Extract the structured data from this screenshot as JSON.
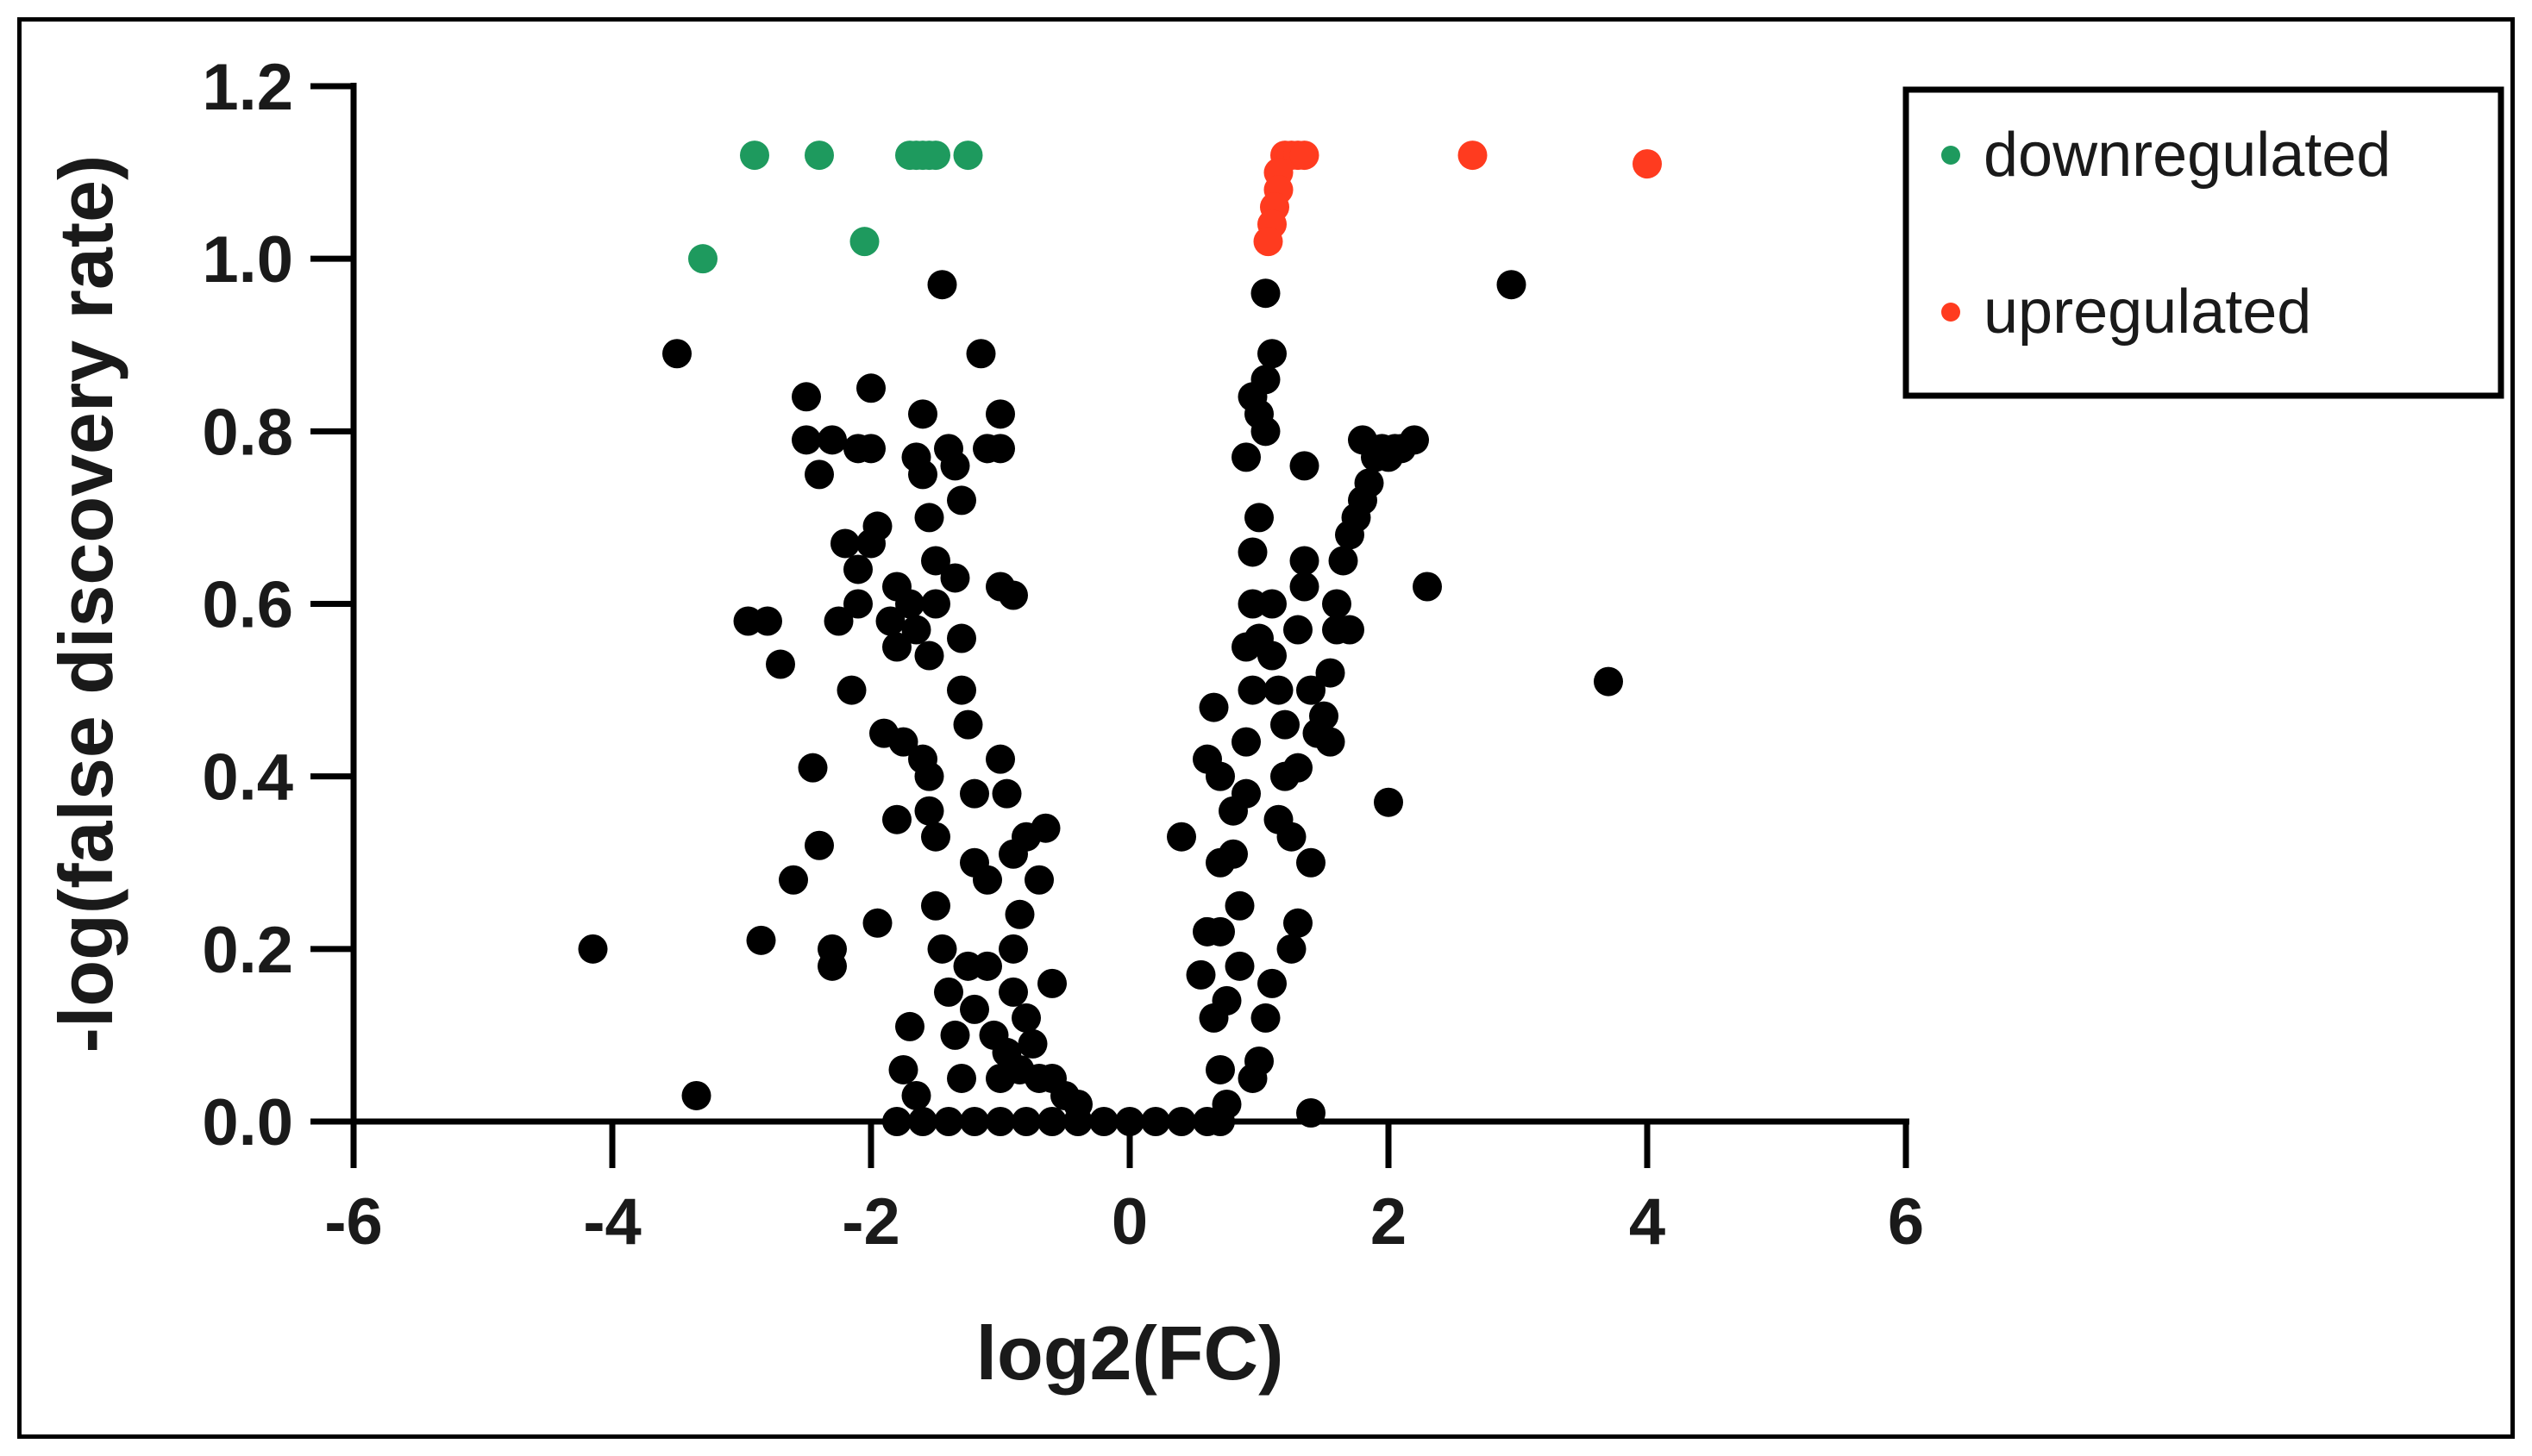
{
  "chart_data": {
    "type": "scatter",
    "title": "",
    "xlabel": "log2(FC)",
    "ylabel": "-log(false discovery rate)",
    "xlim": [
      -6,
      6
    ],
    "ylim": [
      0,
      1.2
    ],
    "xticks": [
      -6,
      -4,
      -2,
      0,
      2,
      4,
      6
    ],
    "xtick_labels": [
      "-6",
      "-4",
      "-2",
      "0",
      "2",
      "4",
      "6"
    ],
    "yticks": [
      0.0,
      0.2,
      0.4,
      0.6,
      0.8,
      1.0,
      1.2
    ],
    "ytick_labels": [
      "0.0",
      "0.2",
      "0.4",
      "0.6",
      "0.8",
      "1.0",
      "1.2"
    ],
    "grid": false,
    "legend": {
      "placement": "top-right",
      "entries": [
        "downregulated",
        "upregulated"
      ]
    },
    "colors": {
      "downregulated": "#1e9a5e",
      "upregulated": "#ff3b1f",
      "other": "#000000"
    },
    "series": [
      {
        "name": "downregulated",
        "points": [
          [
            -2.9,
            1.12
          ],
          [
            -2.4,
            1.12
          ],
          [
            -1.7,
            1.12
          ],
          [
            -1.65,
            1.12
          ],
          [
            -1.6,
            1.12
          ],
          [
            -1.55,
            1.12
          ],
          [
            -1.5,
            1.12
          ],
          [
            -1.25,
            1.12
          ],
          [
            -3.3,
            1.0
          ],
          [
            -2.05,
            1.02
          ]
        ]
      },
      {
        "name": "upregulated",
        "points": [
          [
            1.2,
            1.12
          ],
          [
            1.25,
            1.12
          ],
          [
            1.3,
            1.12
          ],
          [
            1.35,
            1.12
          ],
          [
            2.65,
            1.12
          ],
          [
            4.0,
            1.11
          ],
          [
            1.15,
            1.1
          ],
          [
            1.15,
            1.08
          ],
          [
            1.12,
            1.06
          ],
          [
            1.1,
            1.04
          ],
          [
            1.07,
            1.02
          ]
        ]
      },
      {
        "name": "",
        "points": [
          [
            -4.15,
            0.2
          ],
          [
            -3.35,
            0.03
          ],
          [
            -3.5,
            0.89
          ],
          [
            -2.95,
            0.58
          ],
          [
            -2.8,
            0.58
          ],
          [
            -2.7,
            0.53
          ],
          [
            -2.85,
            0.21
          ],
          [
            -2.6,
            0.28
          ],
          [
            -2.45,
            0.41
          ],
          [
            -2.4,
            0.32
          ],
          [
            -2.3,
            0.2
          ],
          [
            -2.3,
            0.18
          ],
          [
            -2.5,
            0.84
          ],
          [
            -2.5,
            0.79
          ],
          [
            -2.4,
            0.75
          ],
          [
            -2.3,
            0.79
          ],
          [
            -2.1,
            0.78
          ],
          [
            -2.0,
            0.85
          ],
          [
            -2.0,
            0.78
          ],
          [
            -2.2,
            0.67
          ],
          [
            -2.1,
            0.64
          ],
          [
            -2.15,
            0.5
          ],
          [
            -2.25,
            0.58
          ],
          [
            -2.1,
            0.6
          ],
          [
            -2.0,
            0.67
          ],
          [
            -1.95,
            0.69
          ],
          [
            -1.9,
            0.45
          ],
          [
            -1.95,
            0.23
          ],
          [
            -1.85,
            0.58
          ],
          [
            -1.8,
            0.62
          ],
          [
            -1.8,
            0.55
          ],
          [
            -1.75,
            0.44
          ],
          [
            -1.8,
            0.35
          ],
          [
            -1.7,
            0.6
          ],
          [
            -1.65,
            0.57
          ],
          [
            -1.6,
            0.82
          ],
          [
            -1.65,
            0.77
          ],
          [
            -1.6,
            0.75
          ],
          [
            -1.55,
            0.7
          ],
          [
            -1.5,
            0.65
          ],
          [
            -1.5,
            0.6
          ],
          [
            -1.55,
            0.54
          ],
          [
            -1.6,
            0.42
          ],
          [
            -1.55,
            0.4
          ],
          [
            -1.55,
            0.36
          ],
          [
            -1.5,
            0.33
          ],
          [
            -1.45,
            0.97
          ],
          [
            -1.4,
            0.78
          ],
          [
            -1.35,
            0.76
          ],
          [
            -1.3,
            0.72
          ],
          [
            -1.35,
            0.63
          ],
          [
            -1.3,
            0.56
          ],
          [
            -1.3,
            0.5
          ],
          [
            -1.25,
            0.46
          ],
          [
            -1.2,
            0.38
          ],
          [
            -1.2,
            0.3
          ],
          [
            -1.15,
            0.89
          ],
          [
            -1.1,
            0.78
          ],
          [
            -1.0,
            0.82
          ],
          [
            -1.0,
            0.78
          ],
          [
            -1.0,
            0.62
          ],
          [
            -0.9,
            0.61
          ],
          [
            -1.0,
            0.42
          ],
          [
            -0.95,
            0.38
          ],
          [
            -0.9,
            0.31
          ],
          [
            -0.9,
            0.2
          ],
          [
            -0.8,
            0.33
          ],
          [
            -0.85,
            0.24
          ],
          [
            -0.9,
            0.15
          ],
          [
            -0.8,
            0.12
          ],
          [
            -0.7,
            0.28
          ],
          [
            -0.65,
            0.34
          ],
          [
            -0.6,
            0.16
          ],
          [
            -0.7,
            0.05
          ],
          [
            -1.7,
            0.11
          ],
          [
            -1.75,
            0.06
          ],
          [
            -1.65,
            0.03
          ],
          [
            -1.5,
            0.25
          ],
          [
            -1.45,
            0.2
          ],
          [
            -1.4,
            0.15
          ],
          [
            -1.35,
            0.1
          ],
          [
            -1.3,
            0.05
          ],
          [
            -1.25,
            0.18
          ],
          [
            -1.2,
            0.13
          ],
          [
            -1.1,
            0.28
          ],
          [
            -1.1,
            0.18
          ],
          [
            -1.05,
            0.1
          ],
          [
            -1.0,
            0.05
          ],
          [
            -0.95,
            0.08
          ],
          [
            -0.85,
            0.06
          ],
          [
            -0.75,
            0.09
          ],
          [
            -0.6,
            0.05
          ],
          [
            -0.5,
            0.03
          ],
          [
            -0.4,
            0.02
          ],
          [
            -1.8,
            0.0
          ],
          [
            -1.6,
            0.0
          ],
          [
            -1.4,
            0.0
          ],
          [
            -1.2,
            0.0
          ],
          [
            -1.0,
            0.0
          ],
          [
            -0.8,
            0.0
          ],
          [
            -0.6,
            0.0
          ],
          [
            -0.4,
            0.0
          ],
          [
            -0.2,
            0.0
          ],
          [
            0.0,
            0.0
          ],
          [
            0.2,
            0.0
          ],
          [
            0.4,
            0.0
          ],
          [
            0.6,
            0.0
          ],
          [
            0.7,
            0.0
          ],
          [
            0.4,
            0.33
          ],
          [
            0.55,
            0.17
          ],
          [
            0.6,
            0.22
          ],
          [
            0.65,
            0.12
          ],
          [
            0.6,
            0.42
          ],
          [
            0.65,
            0.48
          ],
          [
            0.7,
            0.4
          ],
          [
            0.7,
            0.3
          ],
          [
            0.7,
            0.22
          ],
          [
            0.75,
            0.14
          ],
          [
            0.7,
            0.06
          ],
          [
            0.75,
            0.02
          ],
          [
            0.8,
            0.36
          ],
          [
            0.8,
            0.31
          ],
          [
            0.85,
            0.25
          ],
          [
            0.85,
            0.18
          ],
          [
            0.9,
            0.38
          ],
          [
            0.9,
            0.44
          ],
          [
            0.95,
            0.5
          ],
          [
            0.9,
            0.55
          ],
          [
            0.95,
            0.6
          ],
          [
            1.0,
            0.56
          ],
          [
            0.95,
            0.66
          ],
          [
            1.0,
            0.7
          ],
          [
            0.9,
            0.77
          ],
          [
            0.95,
            0.84
          ],
          [
            1.0,
            0.82
          ],
          [
            1.05,
            0.8
          ],
          [
            1.05,
            0.86
          ],
          [
            1.1,
            0.89
          ],
          [
            1.05,
            0.96
          ],
          [
            1.1,
            0.6
          ],
          [
            1.1,
            0.54
          ],
          [
            1.15,
            0.5
          ],
          [
            1.2,
            0.46
          ],
          [
            1.2,
            0.4
          ],
          [
            1.15,
            0.35
          ],
          [
            1.25,
            0.33
          ],
          [
            1.3,
            0.41
          ],
          [
            1.3,
            0.57
          ],
          [
            1.35,
            0.62
          ],
          [
            1.35,
            0.65
          ],
          [
            1.4,
            0.5
          ],
          [
            1.4,
            0.3
          ],
          [
            1.45,
            0.45
          ],
          [
            1.5,
            0.47
          ],
          [
            1.55,
            0.52
          ],
          [
            1.55,
            0.44
          ],
          [
            1.35,
            0.76
          ],
          [
            1.3,
            0.23
          ],
          [
            1.25,
            0.2
          ],
          [
            1.1,
            0.16
          ],
          [
            1.05,
            0.12
          ],
          [
            1.0,
            0.07
          ],
          [
            0.95,
            0.05
          ],
          [
            1.4,
            0.01
          ],
          [
            1.6,
            0.6
          ],
          [
            1.65,
            0.65
          ],
          [
            1.7,
            0.68
          ],
          [
            1.75,
            0.7
          ],
          [
            1.8,
            0.72
          ],
          [
            1.8,
            0.79
          ],
          [
            1.85,
            0.74
          ],
          [
            1.9,
            0.77
          ],
          [
            1.95,
            0.78
          ],
          [
            2.0,
            0.77
          ],
          [
            2.05,
            0.78
          ],
          [
            2.1,
            0.78
          ],
          [
            2.2,
            0.79
          ],
          [
            1.6,
            0.57
          ],
          [
            1.7,
            0.57
          ],
          [
            2.0,
            0.37
          ],
          [
            2.3,
            0.62
          ],
          [
            2.95,
            0.97
          ],
          [
            3.7,
            0.51
          ]
        ]
      }
    ]
  }
}
